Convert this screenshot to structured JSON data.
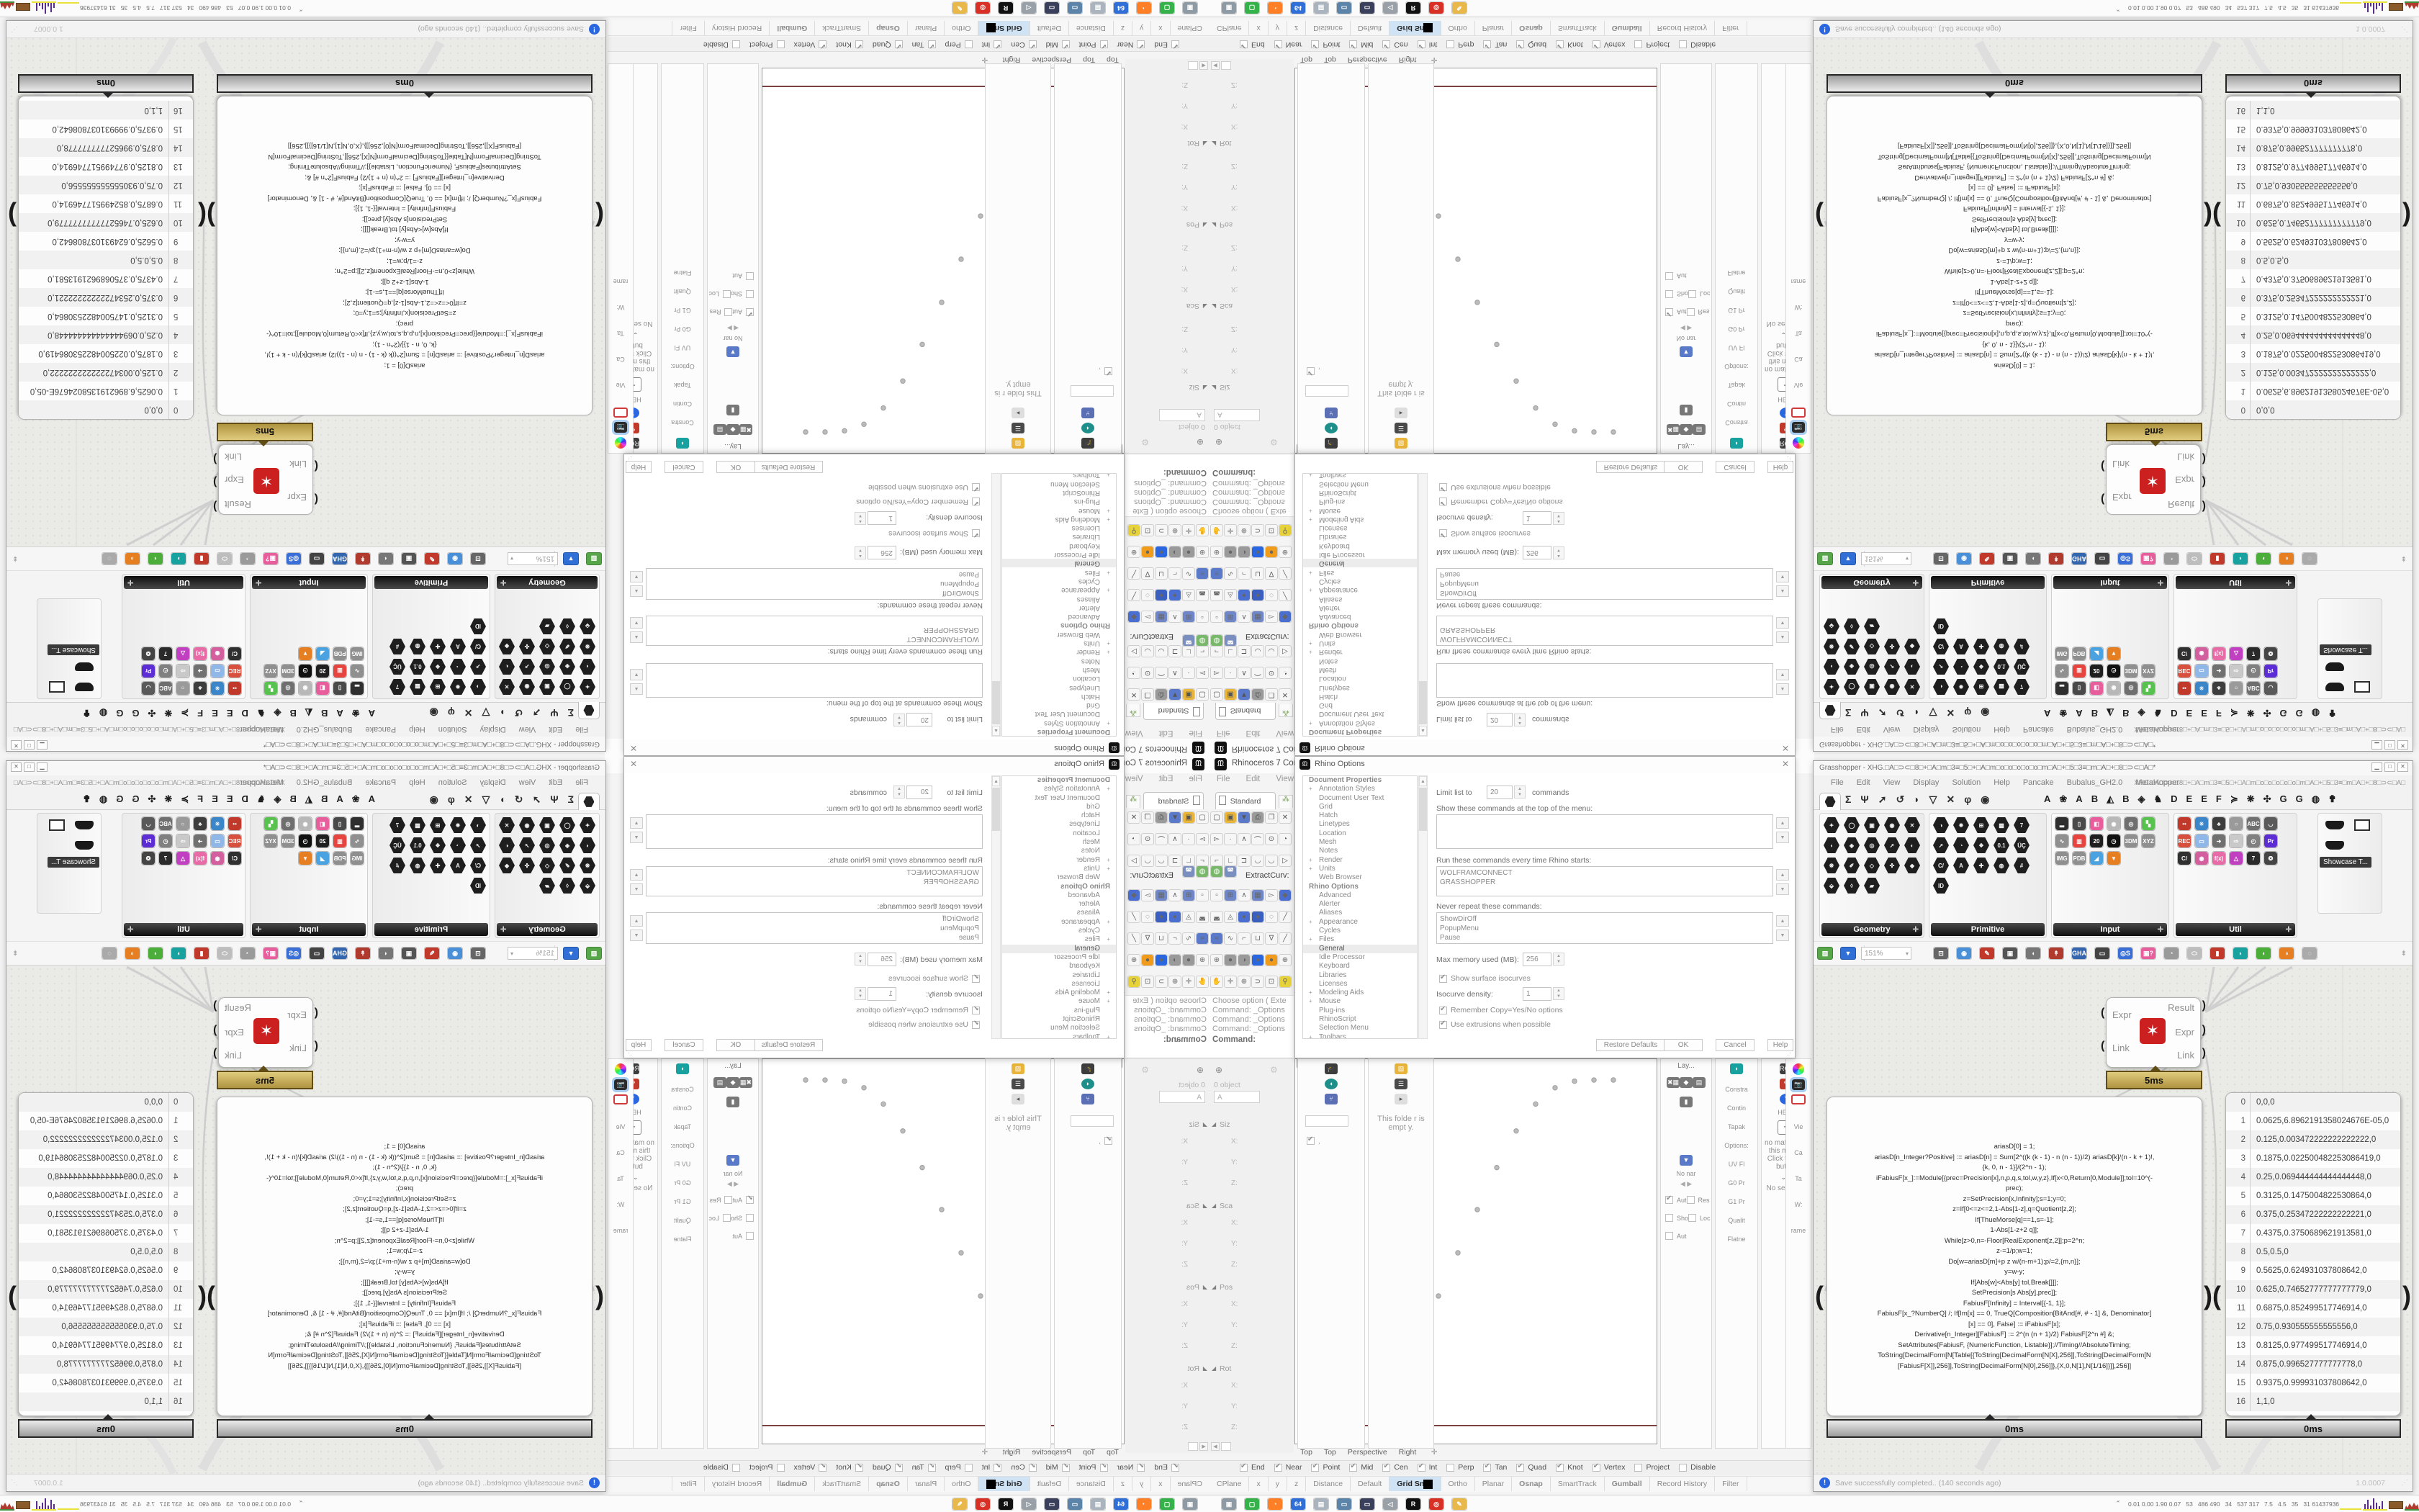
{
  "rhino": {
    "title": "Rhinoceros 7 Corporate -",
    "menu": [
      "File",
      "Edit",
      "View",
      "Curve"
    ],
    "toolbar_tab": "Standard",
    "extract_label": "ExtractCurv:",
    "toolbar_tiles_top": [
      {
        "g": "▢",
        "c": "#f6f6f6"
      },
      {
        "g": "▣",
        "c": "#e8b43a"
      },
      {
        "g": "▼",
        "c": "#5a79c9"
      },
      {
        "g": "⎙",
        "c": "#9a9a9a"
      },
      {
        "g": "❐",
        "c": "#f6f6f6"
      },
      {
        "g": "✕",
        "c": "#f6f6f6"
      },
      {
        "g": "▻",
        "c": "#f6f6f6"
      },
      {
        "g": "·",
        "c": "#f6f6f6"
      },
      {
        "g": "∧",
        "c": "#f6f6f6"
      },
      {
        "g": "⌒",
        "c": "#f6f6f6"
      },
      {
        "g": "⊙",
        "c": "#f6f6f6"
      },
      {
        "g": "◔",
        "c": "#f6f6f6"
      },
      {
        "g": "⌐",
        "c": "#f6f6f6"
      },
      {
        "g": "∟",
        "c": "#f6f6f6"
      },
      {
        "g": "⊐",
        "c": "#f6f6f6"
      },
      {
        "g": "◡",
        "c": "#f6f6f6"
      },
      {
        "g": "◡",
        "c": "#f6f6f6"
      },
      {
        "g": "▷",
        "c": "#f6f6f6"
      }
    ],
    "toolbar_extract_tiles": [
      {
        "g": "◍",
        "c": "#79b86a"
      },
      {
        "g": "◚",
        "c": "#7a8fc0"
      }
    ],
    "toolbar_tiles_bottom": [
      {
        "g": "▫",
        "c": "#f6f6f6"
      },
      {
        "g": "⊞",
        "c": "#6f87c9"
      },
      {
        "g": "∧",
        "c": "#f6f6f6"
      },
      {
        "g": "▦",
        "c": "#6f87c9"
      },
      {
        "g": "▻",
        "c": "#f6f6f6"
      },
      {
        "g": "◆",
        "c": "#4a6fd0"
      },
      {
        "g": "◛",
        "c": "#f6f6f6"
      },
      {
        "g": "◬",
        "c": "#f6f6f6"
      },
      {
        "g": "●",
        "c": "#4a6fd0"
      },
      {
        "g": "●",
        "c": "#3a5fc0"
      },
      {
        "g": "◌",
        "c": "#f6f6f6"
      },
      {
        "g": "╱",
        "c": "#f6f6f6"
      },
      {
        "g": "≈",
        "c": "#5a79c9"
      },
      {
        "g": "∿",
        "c": "#f6f6f6"
      },
      {
        "g": "⌐",
        "c": "#f6f6f6"
      },
      {
        "g": "⊔",
        "c": "#f6f6f6"
      },
      {
        "g": "∇",
        "c": "#f6f6f6"
      },
      {
        "g": "╱",
        "c": "#f6f6f6"
      },
      {
        "g": "⊕",
        "c": "#f6f6f6"
      },
      {
        "g": "●",
        "c": "#9a9a9a"
      },
      {
        "g": "◑",
        "c": "#9a9a9a"
      },
      {
        "g": "●",
        "c": "#2a66e0"
      },
      {
        "g": "●",
        "c": "#f09b1a"
      },
      {
        "g": "⊕",
        "c": "#f6f6f6"
      },
      {
        "g": "✋",
        "c": "#f6f6f6"
      },
      {
        "g": "✛",
        "c": "#f6f6f6"
      },
      {
        "g": "⊕",
        "c": "#f6f6f6"
      },
      {
        "g": "⊃",
        "c": "#f6f6f6"
      },
      {
        "g": "⊡",
        "c": "#f6f6f6"
      },
      {
        "g": "⚲",
        "c": "#e8d23a"
      }
    ],
    "command_lines": [
      "Choose option ( Exte",
      "Command: _Options",
      "Command: _Options",
      "Command: _Options"
    ],
    "command_prompt": "Command:",
    "boxedit": {
      "objects": "0 object",
      "dropdown": "A",
      "sections": [
        {
          "name": "Siz",
          "fields": [
            "X:",
            "Y:",
            "Z:"
          ]
        },
        {
          "name": "Sca",
          "fields": [
            "X:",
            "Y:",
            "Z:"
          ]
        },
        {
          "name": "Pos",
          "fields": [
            "X:",
            "Y:",
            "Z:"
          ]
        },
        {
          "name": "Rot",
          "fields": [
            "X:",
            "Y:",
            "Z:"
          ]
        }
      ]
    },
    "viewport": {
      "title": "Top",
      "tabs": [
        "Top",
        "Top",
        "Perspective",
        "Right"
      ],
      "add_tab": "✛"
    },
    "fabius_f": [
      0,
      6.89e-05,
      0.0034722,
      0.0225005,
      0.0694444,
      0.1475005,
      0.2534722,
      0.375069,
      0.5,
      0.624931,
      0.7465278,
      0.8524995,
      0.9305556,
      0.9774995,
      0.9965278,
      0.999931,
      1
    ],
    "osnap": [
      {
        "label": "End",
        "on": true
      },
      {
        "label": "Near",
        "on": true
      },
      {
        "label": "Point",
        "on": true
      },
      {
        "label": "Mid",
        "on": true
      },
      {
        "label": "Cen",
        "on": true
      },
      {
        "label": "Int",
        "on": true
      },
      {
        "label": "Perp",
        "on": false
      },
      {
        "label": "Tan",
        "on": true
      },
      {
        "label": "Quad",
        "on": true
      },
      {
        "label": "Knot",
        "on": true
      },
      {
        "label": "Vertex",
        "on": true
      },
      {
        "label": "Project",
        "on": false
      },
      {
        "label": "Disable",
        "on": false
      }
    ],
    "status": [
      {
        "label": "CPlane"
      },
      {
        "label": "x"
      },
      {
        "label": "y"
      },
      {
        "label": "z"
      },
      {
        "label": "Distance"
      },
      {
        "label": "Default"
      },
      {
        "label": "Grid Snap",
        "hl": true
      },
      {
        "label": "Ortho"
      },
      {
        "label": "Planar"
      },
      {
        "label": "Osnap",
        "b": true
      },
      {
        "label": "SmartTrack"
      },
      {
        "label": "Gumball",
        "b": true
      },
      {
        "label": "Record History"
      },
      {
        "label": "Filter"
      }
    ],
    "narrow_panels": {
      "colA_title": "Lay...",
      "colA_items": [
        "✖▦",
        "◆",
        "▤",
        "▮"
      ],
      "colA_saves": "No nar",
      "colA_checks": [
        {
          "label": "Aut",
          "on": true
        },
        {
          "label": "Res",
          "on": false
        },
        {
          "label": "Sho",
          "on": false
        },
        {
          "label": "Loc",
          "on": false
        },
        {
          "label": "Aut",
          "on": false
        }
      ],
      "colB_labels": [
        "Constra",
        "Contin",
        "Tapak",
        "Options:",
        "UV Fl",
        "G0 Pr",
        "G1 Pr",
        "Qualit",
        "Flatne"
      ],
      "colC_badge": "RCP",
      "colC_help": "HELP",
      "colC_text": "no material in this model. Click the [+] button",
      "colC_sel": "No selection",
      "colD_labels": [
        "Vie",
        "Ca",
        "Ta",
        "W:",
        "rame"
      ],
      "folder_empty": "This folde r is empt y."
    }
  },
  "options": {
    "title": "Rhino Options",
    "tree": [
      {
        "t": "Document Properties",
        "b": true,
        "pad": 8
      },
      {
        "t": "Annotation Styles",
        "p": "+"
      },
      {
        "t": "Document User Text"
      },
      {
        "t": "Grid"
      },
      {
        "t": "Hatch"
      },
      {
        "t": "Linetypes"
      },
      {
        "t": "Location"
      },
      {
        "t": "Mesh"
      },
      {
        "t": "Notes"
      },
      {
        "t": "Render",
        "p": "+"
      },
      {
        "t": "Units",
        "p": "+"
      },
      {
        "t": "Web Browser"
      },
      {
        "t": "Rhino Options",
        "b": true,
        "pad": 8
      },
      {
        "t": "Advanced"
      },
      {
        "t": "Alerter"
      },
      {
        "t": "Aliases"
      },
      {
        "t": "Appearance",
        "p": "+"
      },
      {
        "t": "Cycles"
      },
      {
        "t": "Files",
        "p": "+"
      },
      {
        "t": "General",
        "sel": true
      },
      {
        "t": "Idle Processor"
      },
      {
        "t": "Keyboard"
      },
      {
        "t": "Libraries"
      },
      {
        "t": "Licenses"
      },
      {
        "t": "Modeling Aids",
        "p": "+"
      },
      {
        "t": "Mouse",
        "p": "+"
      },
      {
        "t": "Plug-ins"
      },
      {
        "t": "RhinoScript"
      },
      {
        "t": "Selection Menu"
      },
      {
        "t": "Toolbars",
        "p": "+"
      }
    ],
    "page": {
      "limit_label": "Limit list to",
      "limit_value": "20",
      "limit_suffix": "commands",
      "show_label": "Show these commands at the top of the menu:",
      "run_label": "Run these commands every time Rhino starts:",
      "run_items": [
        "WOLFRAMCONNECT",
        "GRASSHOPPER"
      ],
      "never_label": "Never repeat these commands:",
      "never_items": [
        "ShowDirOff",
        "PopupMenu",
        "Pause"
      ],
      "mem_label": "Max memory used (MB):",
      "mem_value": "256",
      "iso_check": "Show surface isocurves",
      "iso_label": "Isocurve density:",
      "iso_value": "1",
      "copy_check": "Remember Copy=Yes/No options",
      "ext_check": "Use extrusions when possible",
      "restore_btn": "Restore Defaults",
      "ok": "OK",
      "cancel": "Cancel",
      "help": "Help"
    }
  },
  "gh": {
    "title": "Grasshopper - XHG.□A□⊃⊂□8□+□A□m□3≡□5□+□A□m□o□o□o□o□o□m□A□+□5□3≡□m□A□+□8□⊃⊂□A□*",
    "menu": [
      "File",
      "Edit",
      "View",
      "Display",
      "Solution",
      "Help",
      "Pancake",
      "Bubalus_GH2.0",
      "MetaHopper"
    ],
    "doc_name": "XHG.□A□⊃⊂□8□+□A□m□3≡□5□+□A□m□o□o□o□o□o□m□A□+□5□3≡□m□A□+□8□⊃⊂□A□",
    "tab_glyphs": [
      "Σ",
      "Ψ",
      "➚",
      "↺",
      "◗",
      "▽",
      "✕",
      "φ",
      "◉"
    ],
    "tab_letters": [
      "A",
      "❀",
      "A",
      "B",
      "◭",
      "B",
      "◈",
      "♞",
      "D",
      "E",
      "E",
      "F",
      "≽",
      "❋",
      "✣",
      "G",
      "G",
      "◍",
      "✟"
    ],
    "groups": {
      "geometry": "Geometry",
      "primitive": "Primitive",
      "input": "Input",
      "util": "Util"
    },
    "showcase_label": "Showcase T...",
    "geometry_hexes": [
      "✦",
      "◯",
      "▣",
      "◉",
      "✕",
      "◖",
      "◈",
      "◎",
      "➚",
      "◐",
      "❋",
      "✐",
      "◇",
      "✜",
      "◆",
      "⬙",
      "◊",
      "▰"
    ],
    "primitive_hexes": [
      "◑",
      "✸",
      "⊞",
      "▩",
      "7",
      "➚",
      "◔",
      "❖",
      "0.1",
      "ÜÇ",
      "C/",
      "A",
      "✚",
      "◍",
      "#",
      "ID"
    ],
    "input_tiles": [
      {
        "g": "▂",
        "c": "#2f2f2f"
      },
      {
        "g": "▯",
        "c": "#4a4a4a"
      },
      {
        "g": "◧",
        "c": "#e85d9c"
      },
      {
        "g": "◉",
        "c": "#b8b8b8"
      },
      {
        "g": "◎",
        "c": "#6f6f6f"
      },
      {
        "g": "▚",
        "c": "#58c24e"
      },
      {
        "g": "∿",
        "c": "#8f8f8f"
      },
      {
        "g": "▥",
        "c": "#e8443f"
      },
      {
        "g": "20",
        "c": "#1f1f1f"
      },
      {
        "g": "◷",
        "c": "#101010"
      },
      {
        "g": "3DM",
        "c": "#8f8f8f"
      },
      {
        "g": "XYZ",
        "c": "#8f8f8f"
      },
      {
        "g": "IMG",
        "c": "#8f8f8f"
      },
      {
        "g": "PDB",
        "c": "#8f8f8f"
      },
      {
        "g": "◢",
        "c": "#4aa3e0"
      },
      {
        "g": "▼",
        "c": "#e67e22"
      }
    ],
    "util_tiles": [
      {
        "g": "••",
        "c": "#c0392b"
      },
      {
        "g": "✳",
        "c": "#3a86c8"
      },
      {
        "g": "♣",
        "c": "#3d3d3d"
      },
      {
        "g": "○",
        "c": "#9a9a9a"
      },
      {
        "g": "ABC",
        "c": "#6f6f6f"
      },
      {
        "g": "◡",
        "c": "#5a5a5a"
      },
      {
        "g": "REC",
        "c": "#d94f3d"
      },
      {
        "g": "▭",
        "c": "#8fb7e8"
      },
      {
        "g": "➜",
        "c": "#707070"
      },
      {
        "g": "⇨",
        "c": "#c9c9c9"
      },
      {
        "g": "◴",
        "c": "#808080"
      },
      {
        "g": "Pr",
        "c": "#5c2dd5"
      },
      {
        "g": "C/",
        "c": "#303030"
      },
      {
        "g": "◉",
        "c": "#d35f9e"
      },
      {
        "g": "f(x)",
        "c": "#e86aa6"
      },
      {
        "g": "△",
        "c": "#c13fc1"
      },
      {
        "g": "7",
        "c": "#2a2a2a"
      },
      {
        "g": "❂",
        "c": "#444444"
      }
    ],
    "toolbar": {
      "zoom": "151%",
      "tiles": [
        {
          "g": "⊡",
          "c": "#666666"
        },
        {
          "g": "◉",
          "c": "#4a90d9"
        },
        {
          "g": "✎",
          "c": "#c0392b"
        },
        {
          "g": "▣",
          "c": "#555555"
        },
        {
          "g": "◖",
          "c": "#777777"
        },
        {
          "g": "↟",
          "c": "#b03a2e"
        },
        {
          "g": "GHA",
          "c": "#3466b0"
        },
        {
          "g": "▭",
          "c": "#444444"
        },
        {
          "g": "◎S",
          "c": "#3a6fd8"
        },
        {
          "g": "▣?",
          "c": "#e85d9c"
        },
        {
          "g": "◔",
          "c": "#9a9a9a"
        },
        {
          "g": "⬭",
          "c": "#bdbdbd"
        },
        {
          "g": "▮",
          "c": "#c0392b"
        },
        {
          "g": "◗",
          "c": "#17a2a0"
        },
        {
          "g": "◖",
          "c": "#4cae3a"
        },
        {
          "g": "◑",
          "c": "#e67e22"
        },
        {
          "g": "◌",
          "c": "#aaaaaa"
        }
      ]
    },
    "component": {
      "inputs": [
        "Expr",
        "Link"
      ],
      "outputs": [
        "Result",
        "Expr",
        "Link"
      ],
      "time": "5ms",
      "accent": "#cc1f1f"
    },
    "code_cap": "0ms",
    "numbers_cap": "0ms",
    "code_lines": [
      "ariasD[0] = 1;",
      "ariasD[n_Integer?Positive] := ariasD[n] = Sum[2^((k (k - 1) - n (n - 1))/2) ariasD[k]/(n - k + 1)!,",
      "{k, 0, n - 1}]/(2^n - 1);",
      "iFabiusF[x_]:=Module[{prec=Precision[x],n,p,q,s,tol,w,y,z},If[x<0,Return[0,Module]];tol=10^(-",
      "prec);",
      "z=SetPrecision[x,Infinity];s=1;y=0;",
      "z=If[0<=z<=2,1-Abs[1-z],q=Quotient[z,2];",
      "If[ThueMorse[q]==1,s=-1];",
      "1-Abs[1-z+2 q]];",
      "While[z>0,n=-Floor[RealExponent[z,2]];p=2^n;",
      "z-=1/p;w=1;",
      "Do[w=ariasD[m]+p z w/(n-m+1);p/=2,{m,n}];",
      "y=w-y;",
      "If[Abs[w]<Abs[y] tol,Break[]]];",
      "SetPrecision[s Abs[y],prec]];",
      "FabiusF[Infinity] = Interval[{-1, 1}];",
      "FabiusF[x_?NumberQ] /; If[Im[x] == 0, TrueQ[Composition[BitAnd[#, # - 1] &, Denominator]",
      "[x] == 0], False] := iFabiusF[x];",
      "Derivative[n_Integer][FabiusF] := 2^(n (n + 1)/2) FabiusF[2^n #] &;",
      "SetAttributes[FabiusF, {NumericFunction, Listable}];//Timing//AbsoluteTiming;",
      "",
      "ToString[DecimalForm[N[Table[{ToString[DecimalForm[N[X],256]],ToString[DecimalForm[N",
      "[FabiusF[X]],256]],ToString[DecimalForm[N[0],256]]},{X,0,N[1],N[1/16]}]],256]]"
    ],
    "numbers": [
      {
        "i": "0",
        "v": "0,0,0"
      },
      {
        "i": "1",
        "v": "0.0625,6.8962191358024676E-05,0"
      },
      {
        "i": "2",
        "v": "0.125,0.003472222222222222,0"
      },
      {
        "i": "3",
        "v": "0.1875,0.022500482253086419,0"
      },
      {
        "i": "4",
        "v": "0.25,0.069444444444444448,0"
      },
      {
        "i": "5",
        "v": "0.3125,0.1475004822530864,0"
      },
      {
        "i": "6",
        "v": "0.375,0.25347222222222221,0"
      },
      {
        "i": "7",
        "v": "0.4375,0.3750689621913581,0"
      },
      {
        "i": "8",
        "v": "0.5,0.5,0"
      },
      {
        "i": "9",
        "v": "0.5625,0.624931037808642,0"
      },
      {
        "i": "10",
        "v": "0.625,0.74652777777777779,0"
      },
      {
        "i": "11",
        "v": "0.6875,0.852499517746914,0"
      },
      {
        "i": "12",
        "v": "0.75,0.930555555555556,0"
      },
      {
        "i": "13",
        "v": "0.8125,0.977499517746914,0"
      },
      {
        "i": "14",
        "v": "0.875,0.996527777777778,0"
      },
      {
        "i": "15",
        "v": "0.9375,0.999931037808642,0"
      },
      {
        "i": "16",
        "v": "1,1,0"
      }
    ],
    "status_text": "Save successfully completed.. (140 seconds ago)",
    "version": "1.0.0007"
  },
  "taskbar": {
    "icons": [
      {
        "g": "▣",
        "c": "#8e9aa4"
      },
      {
        "g": "▢",
        "c": "#35b24a"
      },
      {
        "g": "◔",
        "c": "#ff7f27"
      },
      {
        "g": "64",
        "c": "#2f6fd6"
      },
      {
        "g": "▤",
        "c": "#aab4be"
      },
      {
        "g": "▭",
        "c": "#5b84a8"
      },
      {
        "g": "▭",
        "c": "#3a3f5c"
      },
      {
        "g": "◁",
        "c": "#9aa0a8"
      },
      {
        "g": "R",
        "c": "#111111"
      },
      {
        "g": "◎",
        "c": "#d93025"
      },
      {
        "g": "✎",
        "c": "#e8b84b"
      }
    ],
    "readout": "0.01 0.00 1.90 0.07   53   486 490   34   537 317   7.5   4.5   35   31 61437936",
    "tray_colors": {
      "yellow": "#e8e23a",
      "purple": "#5b2d8e",
      "brown": "#8a5a2b",
      "red": "#b03a2e",
      "green": "#3f8f3f"
    }
  }
}
